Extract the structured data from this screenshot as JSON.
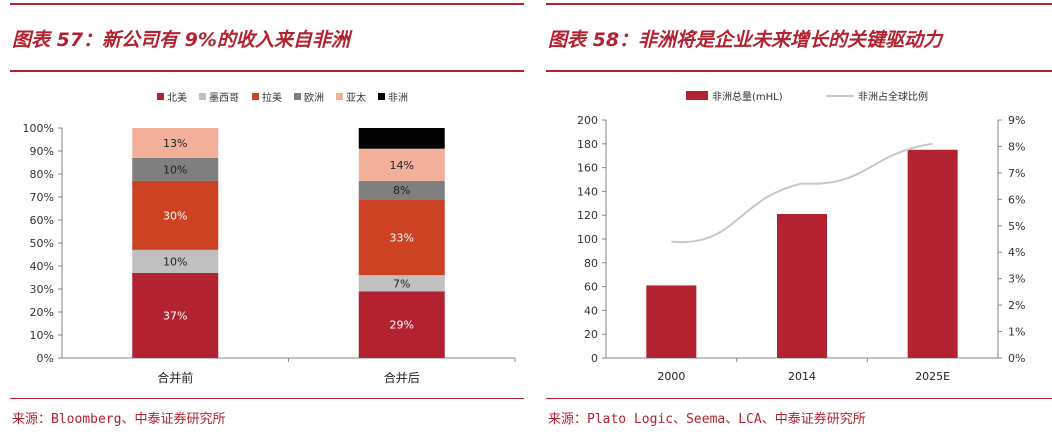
{
  "left": {
    "title": "图表 57：新公司有 9%的收入来自非洲",
    "source": "来源：Bloomberg、中泰证券研究所"
  },
  "right": {
    "title": "图表 58：非洲将是企业未来增长的关键驱动力",
    "source": "来源：Plato Logic、Seema、LCA、中泰证券研究所"
  },
  "chart_data": [
    {
      "type": "bar",
      "stacked": true,
      "categories": [
        "合并前",
        "合并后"
      ],
      "ylim": [
        0,
        100
      ],
      "yticks": [
        "0%",
        "10%",
        "20%",
        "30%",
        "40%",
        "50%",
        "60%",
        "70%",
        "80%",
        "90%",
        "100%"
      ],
      "legend_position": "top",
      "grid": false,
      "series": [
        {
          "name": "北美",
          "color": "#b22230",
          "values": [
            37,
            29
          ],
          "labels": [
            "37%",
            "29%"
          ],
          "label_color": "#ffffff"
        },
        {
          "name": "墨西哥",
          "color": "#c0c0c0",
          "values": [
            10,
            7
          ],
          "labels": [
            "10%",
            "7%"
          ],
          "label_color": "#222222"
        },
        {
          "name": "拉美",
          "color": "#cc4222",
          "values": [
            30,
            33
          ],
          "labels": [
            "30%",
            "33%"
          ],
          "label_color": "#ffffff"
        },
        {
          "name": "欧洲",
          "color": "#7f7f7f",
          "values": [
            10,
            8
          ],
          "labels": [
            "10%",
            "8%"
          ],
          "label_color": "#222222"
        },
        {
          "name": "亚太",
          "color": "#f2b09b",
          "values": [
            13,
            14
          ],
          "labels": [
            "13%",
            "14%"
          ],
          "label_color": "#222222"
        },
        {
          "name": "非洲",
          "color": "#000000",
          "values": [
            0,
            9
          ],
          "labels": [
            "",
            ""
          ],
          "label_color": "#ffffff"
        }
      ]
    },
    {
      "type": "bar",
      "categories": [
        "2000",
        "2014",
        "2025E"
      ],
      "ylim": [
        0,
        200
      ],
      "yticks": [
        "0",
        "20",
        "40",
        "60",
        "80",
        "100",
        "120",
        "140",
        "160",
        "180",
        "200"
      ],
      "y2lim": [
        0,
        9
      ],
      "y2ticks": [
        "0%",
        "1%",
        "2%",
        "3%",
        "4%",
        "5%",
        "6%",
        "7%",
        "8%",
        "9%"
      ],
      "legend_position": "top",
      "grid": false,
      "series": [
        {
          "name": "非洲总量(mHL)",
          "type": "bar",
          "axis": "left",
          "color": "#b22230",
          "values": [
            61,
            121,
            175
          ]
        },
        {
          "name": "非洲占全球比例",
          "type": "line",
          "axis": "right",
          "color": "#c8c8c8",
          "values": [
            4.4,
            6.6,
            8.1
          ]
        }
      ]
    }
  ]
}
